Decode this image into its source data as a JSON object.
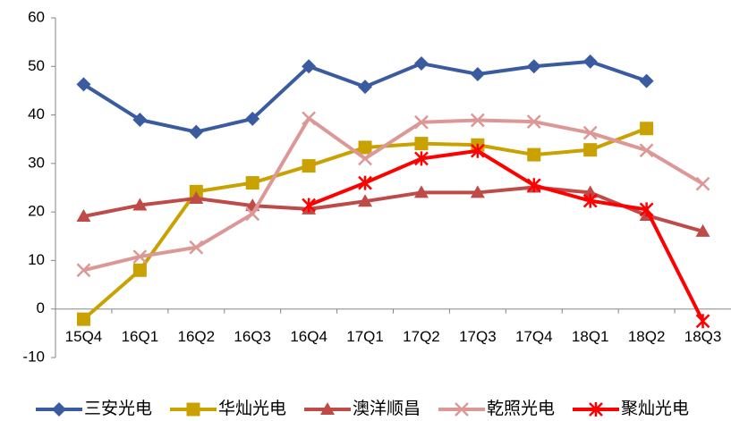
{
  "chart_data": {
    "type": "line",
    "categories": [
      "15Q4",
      "16Q1",
      "16Q2",
      "16Q3",
      "16Q4",
      "17Q1",
      "17Q2",
      "17Q3",
      "17Q4",
      "18Q1",
      "18Q2",
      "18Q3"
    ],
    "ylim": [
      -10,
      60
    ],
    "yticks": [
      -10,
      0,
      10,
      20,
      30,
      40,
      50,
      60
    ],
    "legend": "bottom",
    "series": [
      {
        "name": "三安光电",
        "color": "#3a5ba0",
        "marker": "diamond",
        "values": [
          46.3,
          39,
          36.5,
          39.2,
          50,
          45.8,
          50.6,
          48.4,
          50,
          51,
          47,
          null
        ]
      },
      {
        "name": "华灿光电",
        "color": "#c9a100",
        "marker": "square",
        "values": [
          -2.1,
          8,
          24.2,
          26,
          29.5,
          33.3,
          34.1,
          33.8,
          31.8,
          32.8,
          37.2,
          null
        ]
      },
      {
        "name": "澳洋顺昌",
        "color": "#bf4b48",
        "marker": "triangle",
        "values": [
          19.1,
          21.4,
          22.8,
          21.3,
          20.6,
          22.2,
          24,
          24,
          25.1,
          24,
          19.3,
          16
        ]
      },
      {
        "name": "乾照光电",
        "color": "#dc9896",
        "marker": "x",
        "values": [
          8,
          10.8,
          12.7,
          19.6,
          39.3,
          31,
          38.5,
          38.9,
          38.6,
          36.3,
          32.7,
          25.8
        ]
      },
      {
        "name": "聚灿光电",
        "color": "#ff0000",
        "marker": "star",
        "values": [
          null,
          null,
          null,
          null,
          21.4,
          26,
          31,
          32.6,
          25.5,
          22.3,
          20.5,
          -2.5
        ]
      }
    ]
  }
}
